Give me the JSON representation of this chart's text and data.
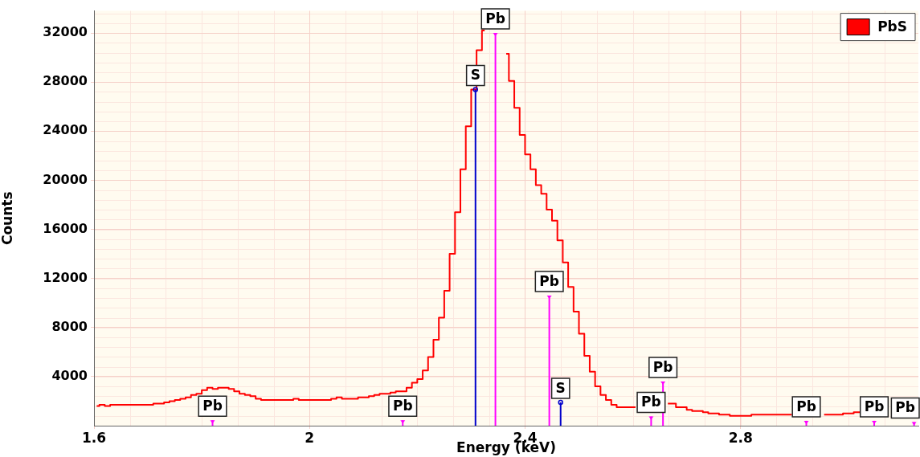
{
  "chart_data": {
    "type": "step",
    "xlabel": "Energy (keV)",
    "ylabel": "Counts",
    "xlim": [
      1.6,
      3.13
    ],
    "ylim": [
      0,
      33800
    ],
    "xticks": [
      1.6,
      2,
      2.4,
      2.8
    ],
    "yticks": [
      4000,
      8000,
      12000,
      16000,
      20000,
      24000,
      28000,
      32000
    ],
    "grid": true,
    "legend": "top right",
    "marker": "none",
    "line_style": "solid",
    "series": [
      {
        "name": "PbS",
        "color": "#ff0000",
        "x": [
          1.605,
          1.615,
          1.625,
          1.635,
          1.645,
          1.655,
          1.665,
          1.675,
          1.685,
          1.695,
          1.705,
          1.715,
          1.725,
          1.735,
          1.745,
          1.755,
          1.765,
          1.775,
          1.785,
          1.795,
          1.805,
          1.815,
          1.825,
          1.835,
          1.845,
          1.855,
          1.865,
          1.875,
          1.885,
          1.895,
          1.905,
          1.915,
          1.925,
          1.935,
          1.945,
          1.955,
          1.965,
          1.975,
          1.985,
          1.995,
          2.005,
          2.015,
          2.025,
          2.035,
          2.045,
          2.055,
          2.065,
          2.075,
          2.085,
          2.095,
          2.105,
          2.115,
          2.125,
          2.135,
          2.145,
          2.155,
          2.165,
          2.175,
          2.185,
          2.195,
          2.205,
          2.215,
          2.225,
          2.235,
          2.245,
          2.255,
          2.265,
          2.275,
          2.285,
          2.295,
          2.305,
          2.315,
          2.325,
          2.335,
          2.345,
          2.355,
          2.365,
          2.375,
          2.385,
          2.395,
          2.405,
          2.415,
          2.425,
          2.435,
          2.445,
          2.455,
          2.465,
          2.475,
          2.485,
          2.495,
          2.505,
          2.515,
          2.525,
          2.535,
          2.545,
          2.555,
          2.565,
          2.575,
          2.585,
          2.595,
          2.605,
          2.615,
          2.625,
          2.635,
          2.645,
          2.655,
          2.665,
          2.675,
          2.685,
          2.695,
          2.705,
          2.715,
          2.725,
          2.735,
          2.745,
          2.755,
          2.765,
          2.775,
          2.785,
          2.795,
          2.805,
          2.815,
          2.825,
          2.835,
          2.845,
          2.855,
          2.865,
          2.875,
          2.885,
          2.895,
          2.905,
          2.915,
          2.925,
          2.935,
          2.945,
          2.955,
          2.965,
          2.975,
          2.985,
          2.995,
          3.005,
          3.015,
          3.025
        ],
        "values": [
          1600,
          1700,
          1600,
          1700,
          1700,
          1700,
          1700,
          1700,
          1700,
          1700,
          1700,
          1800,
          1800,
          1900,
          2000,
          2100,
          2200,
          2300,
          2500,
          2600,
          2900,
          3100,
          3000,
          3100,
          3100,
          3000,
          2800,
          2600,
          2500,
          2400,
          2200,
          2100,
          2100,
          2100,
          2100,
          2100,
          2100,
          2200,
          2100,
          2100,
          2100,
          2100,
          2100,
          2100,
          2200,
          2300,
          2200,
          2200,
          2200,
          2300,
          2300,
          2400,
          2500,
          2600,
          2600,
          2700,
          2800,
          2800,
          3100,
          3500,
          3800,
          4500,
          5600,
          7000,
          8800,
          11000,
          14000,
          17400,
          20900,
          24400,
          27400,
          30600,
          32200,
          null,
          null,
          null,
          30300,
          28100,
          25900,
          23700,
          22100,
          20900,
          19600,
          18900,
          17600,
          16700,
          15100,
          13300,
          11300,
          9300,
          7500,
          5700,
          4400,
          3200,
          2500,
          2100,
          1700,
          1500,
          1500,
          1500,
          1500,
          null,
          null,
          null,
          null,
          null,
          1800,
          1800,
          1500,
          1500,
          1300,
          1200,
          1200,
          1100,
          1000,
          1000,
          900,
          900,
          800,
          800,
          800,
          800,
          900,
          900,
          900,
          900,
          900,
          900,
          900,
          900,
          null,
          null,
          null,
          null,
          null,
          900,
          900,
          900,
          900,
          1000,
          1000,
          1100,
          1100
        ]
      },
      {
        "type": "lollipop",
        "color": "#ff00ff",
        "marker": "triangle",
        "x": [
          1.82,
          2.173,
          2.345,
          2.445,
          2.634,
          2.656,
          2.922,
          3.048,
          3.122
        ],
        "values": [
          450,
          450,
          32000,
          10600,
          750,
          3600,
          400,
          400,
          300
        ]
      },
      {
        "type": "lollipop",
        "color": "#0000cc",
        "marker": "circle",
        "x": [
          2.308,
          2.466
        ],
        "values": [
          27400,
          1900
        ]
      }
    ],
    "annotations": [
      {
        "text": "Pb",
        "x": 1.82,
        "y": 450
      },
      {
        "text": "Pb",
        "x": 2.173,
        "y": 450
      },
      {
        "text": "S",
        "x": 2.308,
        "y": 27400
      },
      {
        "text": "Pb",
        "x": 2.345,
        "y": 32000
      },
      {
        "text": "Pb",
        "x": 2.445,
        "y": 10600
      },
      {
        "text": "S",
        "x": 2.466,
        "y": 1900
      },
      {
        "text": "Pb",
        "x": 2.634,
        "y": 750
      },
      {
        "text": "Pb",
        "x": 2.656,
        "y": 3600
      },
      {
        "text": "Pb",
        "x": 2.922,
        "y": 400
      },
      {
        "text": "Pb",
        "x": 3.048,
        "y": 400
      },
      {
        "text": "Pb",
        "x": 3.122,
        "y": 300
      }
    ]
  }
}
